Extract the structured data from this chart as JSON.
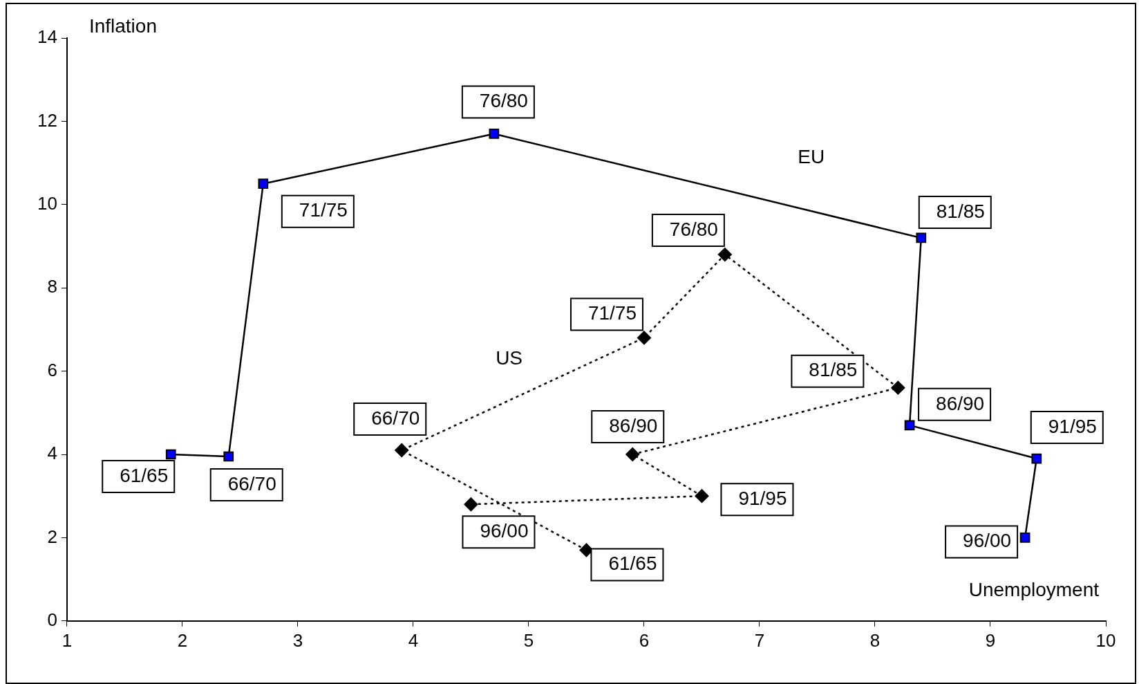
{
  "chart_data": {
    "type": "line",
    "xlabel": "Unemployment",
    "ylabel": "Inflation",
    "xlim": [
      1,
      10
    ],
    "xticks": [
      1,
      2,
      3,
      4,
      5,
      6,
      7,
      8,
      9,
      10
    ],
    "ylim": [
      0,
      14
    ],
    "yticks": [
      0,
      2,
      4,
      6,
      8,
      10,
      12,
      14
    ],
    "grid": false,
    "legend": false,
    "series": [
      {
        "name": "EU",
        "color": "#0000ff",
        "marker": "square",
        "line_style": "solid",
        "x": [
          1.9,
          2.4,
          2.7,
          4.7,
          8.4,
          8.3,
          9.4,
          9.3
        ],
        "values": [
          4.0,
          3.95,
          10.5,
          11.7,
          9.2,
          4.7,
          3.9,
          2.0
        ]
      },
      {
        "name": "US",
        "color": "#000000",
        "marker": "diamond",
        "line_style": "dotted",
        "x": [
          5.5,
          3.9,
          6.0,
          6.7,
          8.2,
          5.9,
          6.5,
          4.5
        ],
        "values": [
          1.7,
          4.1,
          6.8,
          8.8,
          5.6,
          4.0,
          3.0,
          2.8
        ]
      }
    ],
    "annotations": [
      {
        "text": "61/65",
        "x": 1.9,
        "y": 4.0
      },
      {
        "text": "66/70",
        "x": 2.4,
        "y": 3.95
      },
      {
        "text": "71/75",
        "x": 2.7,
        "y": 10.5
      },
      {
        "text": "76/80",
        "x": 4.7,
        "y": 11.7
      },
      {
        "text": "81/85",
        "x": 8.4,
        "y": 9.2
      },
      {
        "text": "86/90",
        "x": 8.3,
        "y": 4.7
      },
      {
        "text": "91/95",
        "x": 9.4,
        "y": 3.9
      },
      {
        "text": "96/00",
        "x": 9.3,
        "y": 2.0
      },
      {
        "text": "61/65",
        "x": 5.5,
        "y": 1.7
      },
      {
        "text": "66/70",
        "x": 3.9,
        "y": 4.1
      },
      {
        "text": "71/75",
        "x": 6.0,
        "y": 6.8
      },
      {
        "text": "76/80",
        "x": 6.7,
        "y": 8.8
      },
      {
        "text": "81/85",
        "x": 8.2,
        "y": 5.6
      },
      {
        "text": "86/90",
        "x": 5.9,
        "y": 4.0
      },
      {
        "text": "91/95",
        "x": 6.5,
        "y": 3.0
      },
      {
        "text": "96/00",
        "x": 4.5,
        "y": 2.8
      }
    ]
  }
}
